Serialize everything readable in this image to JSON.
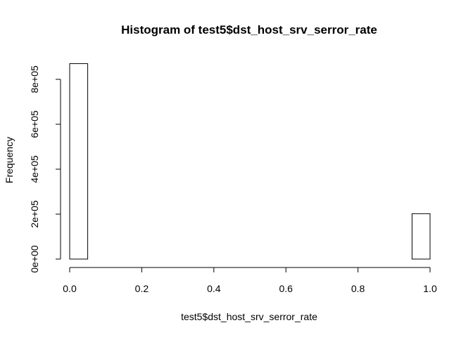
{
  "chart_data": {
    "type": "bar",
    "title": "Histogram of test5$dst_host_srv_serror_rate",
    "xlabel": "test5$dst_host_srv_serror_rate",
    "ylabel": "Frequency",
    "xlim": [
      0,
      1
    ],
    "ylim": [
      0,
      800000
    ],
    "x_ticks": [
      0.0,
      0.2,
      0.4,
      0.6,
      0.8,
      1.0
    ],
    "x_tick_labels": [
      "0.0",
      "0.2",
      "0.4",
      "0.6",
      "0.8",
      "1.0"
    ],
    "y_ticks": [
      0,
      200000,
      400000,
      600000,
      800000
    ],
    "y_tick_labels": [
      "0e+00",
      "2e+05",
      "4e+05",
      "6e+05",
      "8e+05"
    ],
    "bins": [
      {
        "start": 0.0,
        "end": 0.05,
        "value": 870000
      },
      {
        "start": 0.05,
        "end": 0.1,
        "value": 0
      },
      {
        "start": 0.1,
        "end": 0.15,
        "value": 0
      },
      {
        "start": 0.15,
        "end": 0.2,
        "value": 0
      },
      {
        "start": 0.2,
        "end": 0.25,
        "value": 0
      },
      {
        "start": 0.25,
        "end": 0.3,
        "value": 0
      },
      {
        "start": 0.3,
        "end": 0.35,
        "value": 0
      },
      {
        "start": 0.35,
        "end": 0.4,
        "value": 0
      },
      {
        "start": 0.4,
        "end": 0.45,
        "value": 0
      },
      {
        "start": 0.45,
        "end": 0.5,
        "value": 0
      },
      {
        "start": 0.5,
        "end": 0.55,
        "value": 0
      },
      {
        "start": 0.55,
        "end": 0.6,
        "value": 0
      },
      {
        "start": 0.6,
        "end": 0.65,
        "value": 0
      },
      {
        "start": 0.65,
        "end": 0.7,
        "value": 0
      },
      {
        "start": 0.7,
        "end": 0.75,
        "value": 0
      },
      {
        "start": 0.75,
        "end": 0.8,
        "value": 0
      },
      {
        "start": 0.8,
        "end": 0.85,
        "value": 0
      },
      {
        "start": 0.85,
        "end": 0.9,
        "value": 0
      },
      {
        "start": 0.9,
        "end": 0.95,
        "value": 0
      },
      {
        "start": 0.95,
        "end": 1.0,
        "value": 202000
      }
    ],
    "grid": false,
    "bar_fill": "#ffffff",
    "bar_stroke": "#000000"
  }
}
